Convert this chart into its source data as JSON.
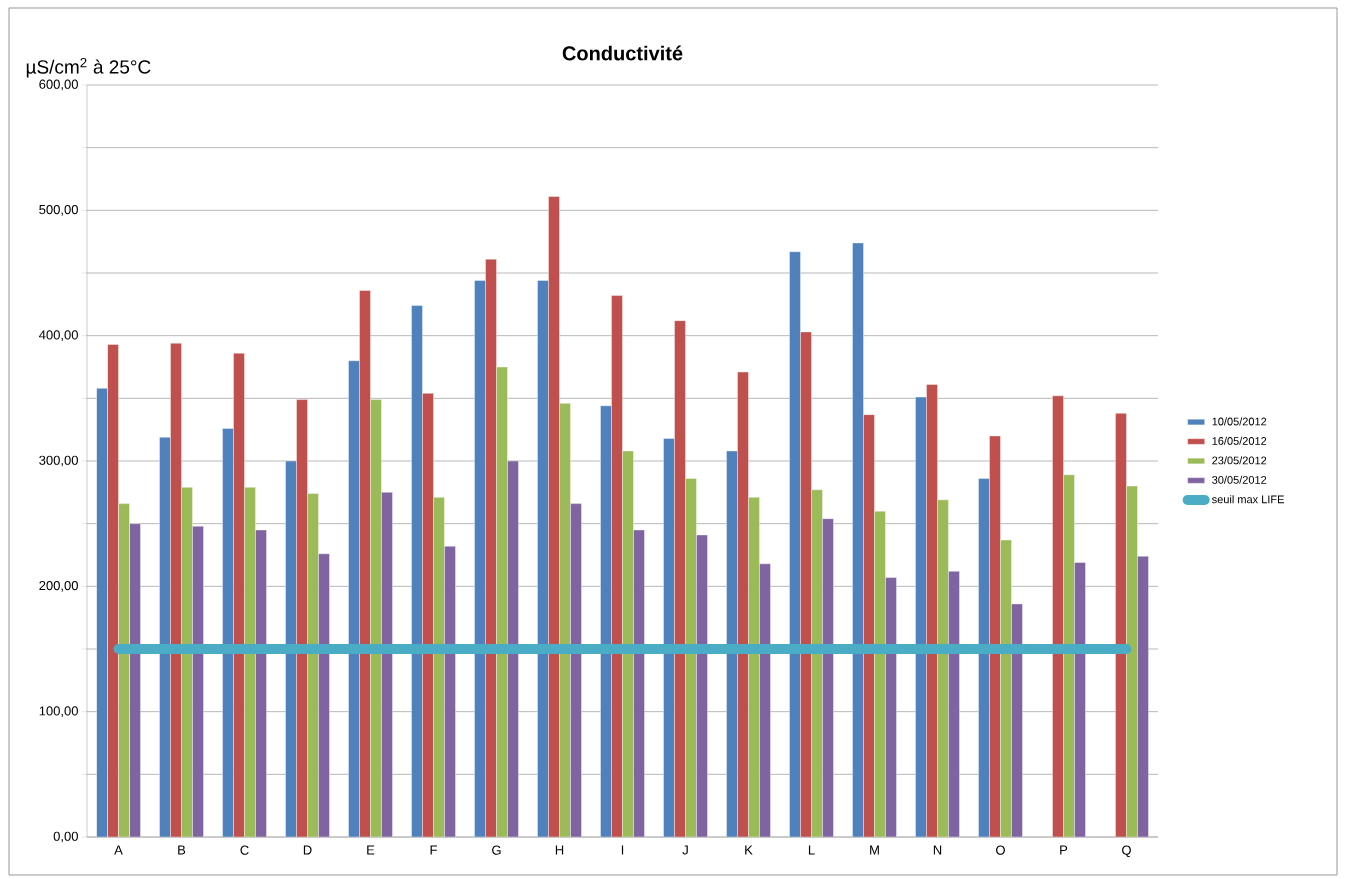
{
  "chart_data": {
    "type": "bar",
    "title": "Conductivité",
    "ylabel": "µS/cm$^{2}$ à 25°C",
    "categories": [
      "A",
      "B",
      "C",
      "D",
      "E",
      "F",
      "G",
      "H",
      "I",
      "J",
      "K",
      "L",
      "M",
      "N",
      "O",
      "P",
      "Q"
    ],
    "series": [
      {
        "name": "10/05/2012",
        "color": "#4f81bd",
        "values": [
          358,
          319,
          326,
          300,
          380,
          424,
          444,
          444,
          344,
          318,
          308,
          467,
          474,
          351,
          286,
          null,
          null
        ]
      },
      {
        "name": "16/05/2012",
        "color": "#c0504d",
        "values": [
          393,
          394,
          386,
          349,
          436,
          354,
          461,
          511,
          432,
          412,
          371,
          403,
          337,
          361,
          320,
          352,
          338
        ]
      },
      {
        "name": "23/05/2012",
        "color": "#9bbb59",
        "values": [
          266,
          279,
          279,
          274,
          349,
          271,
          375,
          346,
          308,
          286,
          271,
          277,
          260,
          269,
          237,
          289,
          280
        ]
      },
      {
        "name": "30/05/2012",
        "color": "#8064a2",
        "values": [
          250,
          248,
          245,
          226,
          275,
          232,
          300,
          266,
          245,
          241,
          218,
          254,
          207,
          212,
          186,
          219,
          224
        ]
      },
      {
        "name": "seuil max LIFE",
        "type": "line",
        "color": "#4bacc6",
        "values": [
          150,
          150,
          150,
          150,
          150,
          150,
          150,
          150,
          150,
          150,
          150,
          150,
          150,
          150,
          150,
          150,
          150
        ]
      }
    ],
    "ylim": [
      0,
      600
    ],
    "yticks": [
      {
        "value": 0,
        "label": "0,00"
      },
      {
        "value": 50,
        "label": null
      },
      {
        "value": 100,
        "label": "100,00"
      },
      {
        "value": 150,
        "label": null
      },
      {
        "value": 200,
        "label": "200,00"
      },
      {
        "value": 250,
        "label": null
      },
      {
        "value": 300,
        "label": "300,00"
      },
      {
        "value": 350,
        "label": null
      },
      {
        "value": 400,
        "label": "400,00"
      },
      {
        "value": 450,
        "label": null
      },
      {
        "value": 500,
        "label": "500,00"
      },
      {
        "value": 550,
        "label": null
      },
      {
        "value": 600,
        "label": "600,00"
      }
    ],
    "grid": "y",
    "legend": "right"
  }
}
